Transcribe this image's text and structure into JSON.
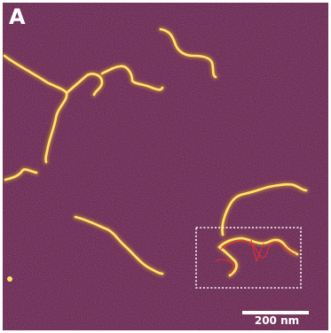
{
  "figure": {
    "panel_label": "A",
    "scale_bar_label": "200 nm",
    "colors": {
      "background": "#5a1f4e",
      "strand": "#ffe46a",
      "strand_glow": "#d99a2a",
      "trace": "#ff2a2a",
      "selection_box": "#ffffff"
    },
    "annotations": [
      "dotted-selection-box",
      "red-contour-trace"
    ]
  }
}
